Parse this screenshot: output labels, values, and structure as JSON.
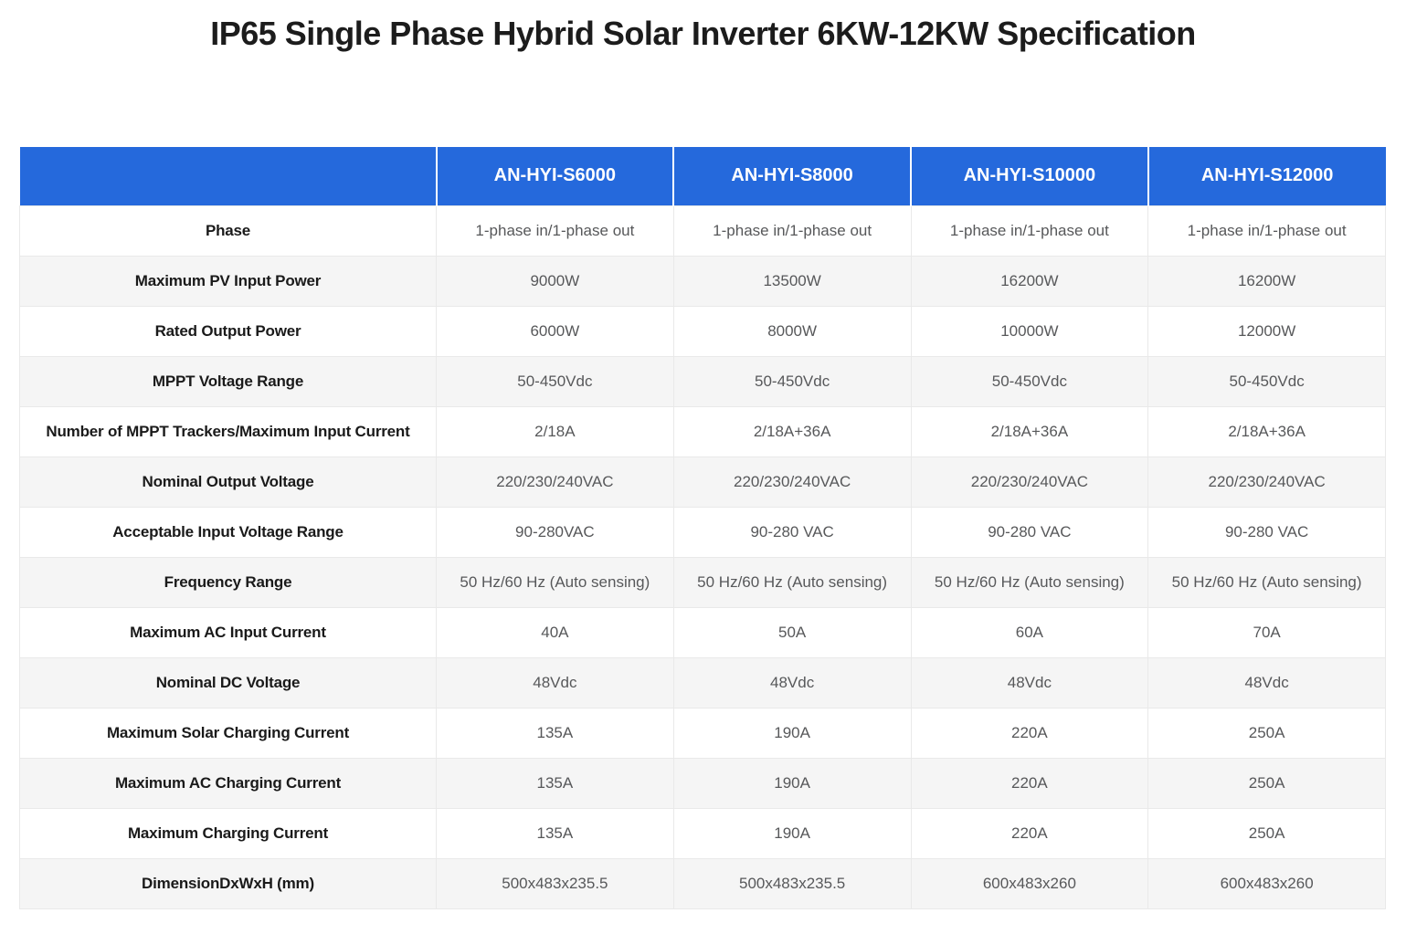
{
  "title": "IP65 Single Phase Hybrid Solar Inverter 6KW-12KW Specification",
  "colors": {
    "header_bg": "#2569dc",
    "row_alt_bg": "#f5f5f5",
    "label_color": "#1a1a1a",
    "value_color": "#57585a",
    "title_color": "#1c1c1c",
    "border_color": "#e9e9e9"
  },
  "table": {
    "corner_label": "",
    "columns": [
      "AN-HYI-S6000",
      "AN-HYI-S8000",
      "AN-HYI-S10000",
      "AN-HYI-S12000"
    ],
    "rows": [
      {
        "label": "Phase",
        "values": [
          "1-phase in/1-phase out",
          "1-phase in/1-phase out",
          "1-phase in/1-phase out",
          "1-phase in/1-phase out"
        ]
      },
      {
        "label": "Maximum PV Input Power",
        "values": [
          "9000W",
          "13500W",
          "16200W",
          "16200W"
        ]
      },
      {
        "label": "Rated Output Power",
        "values": [
          "6000W",
          "8000W",
          "10000W",
          "12000W"
        ]
      },
      {
        "label": "MPPT Voltage Range",
        "values": [
          "50-450Vdc",
          "50-450Vdc",
          "50-450Vdc",
          "50-450Vdc"
        ]
      },
      {
        "label": "Number of MPPT Trackers/Maximum Input Current",
        "values": [
          "2/18A",
          "2/18A+36A",
          "2/18A+36A",
          "2/18A+36A"
        ]
      },
      {
        "label": "Nominal Output Voltage",
        "values": [
          "220/230/240VAC",
          "220/230/240VAC",
          "220/230/240VAC",
          "220/230/240VAC"
        ]
      },
      {
        "label": "Acceptable Input Voltage Range",
        "values": [
          "90-280VAC",
          "90-280 VAC",
          "90-280 VAC",
          "90-280 VAC"
        ]
      },
      {
        "label": "Frequency Range",
        "values": [
          "50 Hz/60 Hz (Auto sensing)",
          "50 Hz/60 Hz (Auto sensing)",
          "50 Hz/60 Hz (Auto sensing)",
          "50 Hz/60 Hz (Auto sensing)"
        ]
      },
      {
        "label": "Maximum AC Input Current",
        "values": [
          "40A",
          "50A",
          "60A",
          "70A"
        ]
      },
      {
        "label": "Nominal DC Voltage",
        "values": [
          "48Vdc",
          "48Vdc",
          "48Vdc",
          "48Vdc"
        ]
      },
      {
        "label": "Maximum Solar Charging Current",
        "values": [
          "135A",
          "190A",
          "220A",
          "250A"
        ]
      },
      {
        "label": "Maximum AC Charging Current",
        "values": [
          "135A",
          "190A",
          "220A",
          "250A"
        ]
      },
      {
        "label": "Maximum Charging Current",
        "values": [
          "135A",
          "190A",
          "220A",
          "250A"
        ]
      },
      {
        "label": "DimensionDxWxH (mm)",
        "values": [
          "500x483x235.5",
          "500x483x235.5",
          "600x483x260",
          "600x483x260"
        ]
      }
    ]
  }
}
